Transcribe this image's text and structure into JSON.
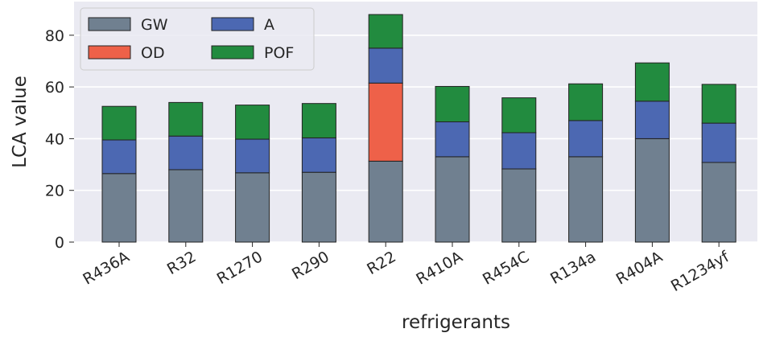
{
  "chart_data": {
    "type": "bar",
    "stacked": true,
    "categories": [
      "R436A",
      "R32",
      "R1270",
      "R290",
      "R22",
      "R410A",
      "R454C",
      "R134a",
      "R404A",
      "R1234yf"
    ],
    "series": [
      {
        "name": "GW",
        "color": "#708090",
        "values": [
          26.5,
          28.0,
          26.8,
          27.0,
          31.3,
          33.0,
          28.3,
          33.0,
          40.0,
          30.8
        ]
      },
      {
        "name": "OD",
        "color": "#ee6149",
        "values": [
          0,
          0,
          0,
          0,
          30.2,
          0,
          0,
          0,
          0,
          0
        ]
      },
      {
        "name": "A",
        "color": "#4c68b2",
        "values": [
          13.0,
          13.0,
          13.0,
          13.3,
          13.5,
          13.5,
          14.0,
          14.0,
          14.5,
          15.2
        ]
      },
      {
        "name": "POF",
        "color": "#228b3f",
        "values": [
          13.0,
          13.0,
          13.2,
          13.3,
          13.0,
          13.7,
          13.5,
          14.2,
          14.8,
          15.0
        ]
      }
    ],
    "xlabel": "refrigerants",
    "ylabel": "LCA value",
    "ylim": [
      0,
      93
    ],
    "yticks": [
      0,
      20,
      40,
      60,
      80
    ],
    "grid": true,
    "background": "#eaeaf2",
    "legend": {
      "placement": "top-left",
      "columns": 2,
      "order": [
        "GW",
        "OD",
        "A",
        "POF"
      ]
    }
  }
}
